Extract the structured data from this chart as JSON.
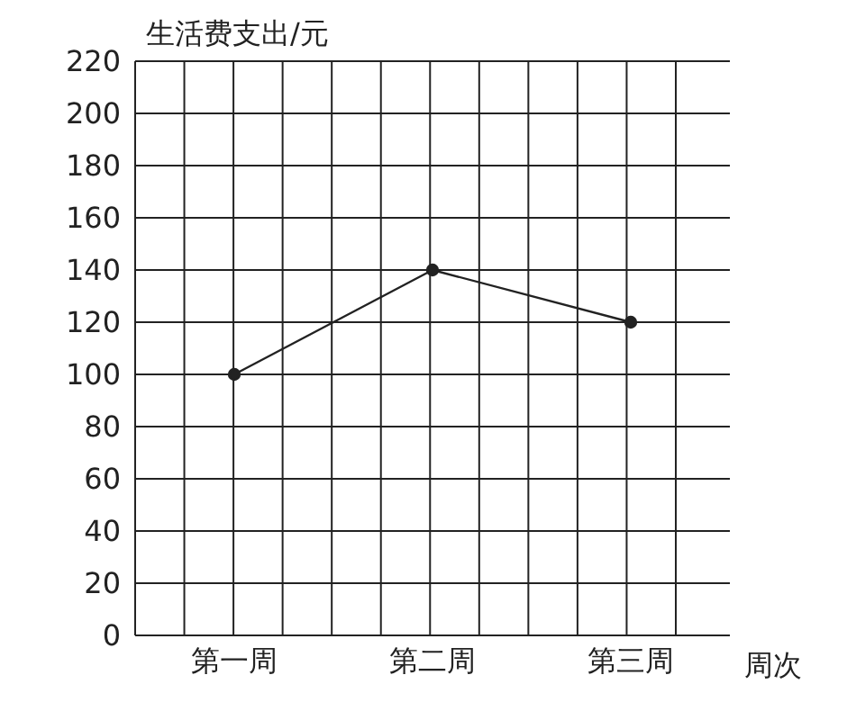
{
  "chart_data": {
    "type": "line",
    "categories": [
      "第一周",
      "第二周",
      "第三周"
    ],
    "values": [
      100,
      140,
      120
    ],
    "color": "#222222",
    "ylim": [
      0,
      220
    ],
    "yticks": [
      0,
      20,
      40,
      60,
      80,
      100,
      120,
      140,
      160,
      180,
      200,
      220
    ],
    "xlabel": "周次",
    "ylabel": "生活费支出/元",
    "grid": true,
    "marker": "circle",
    "line_style": "solid"
  }
}
